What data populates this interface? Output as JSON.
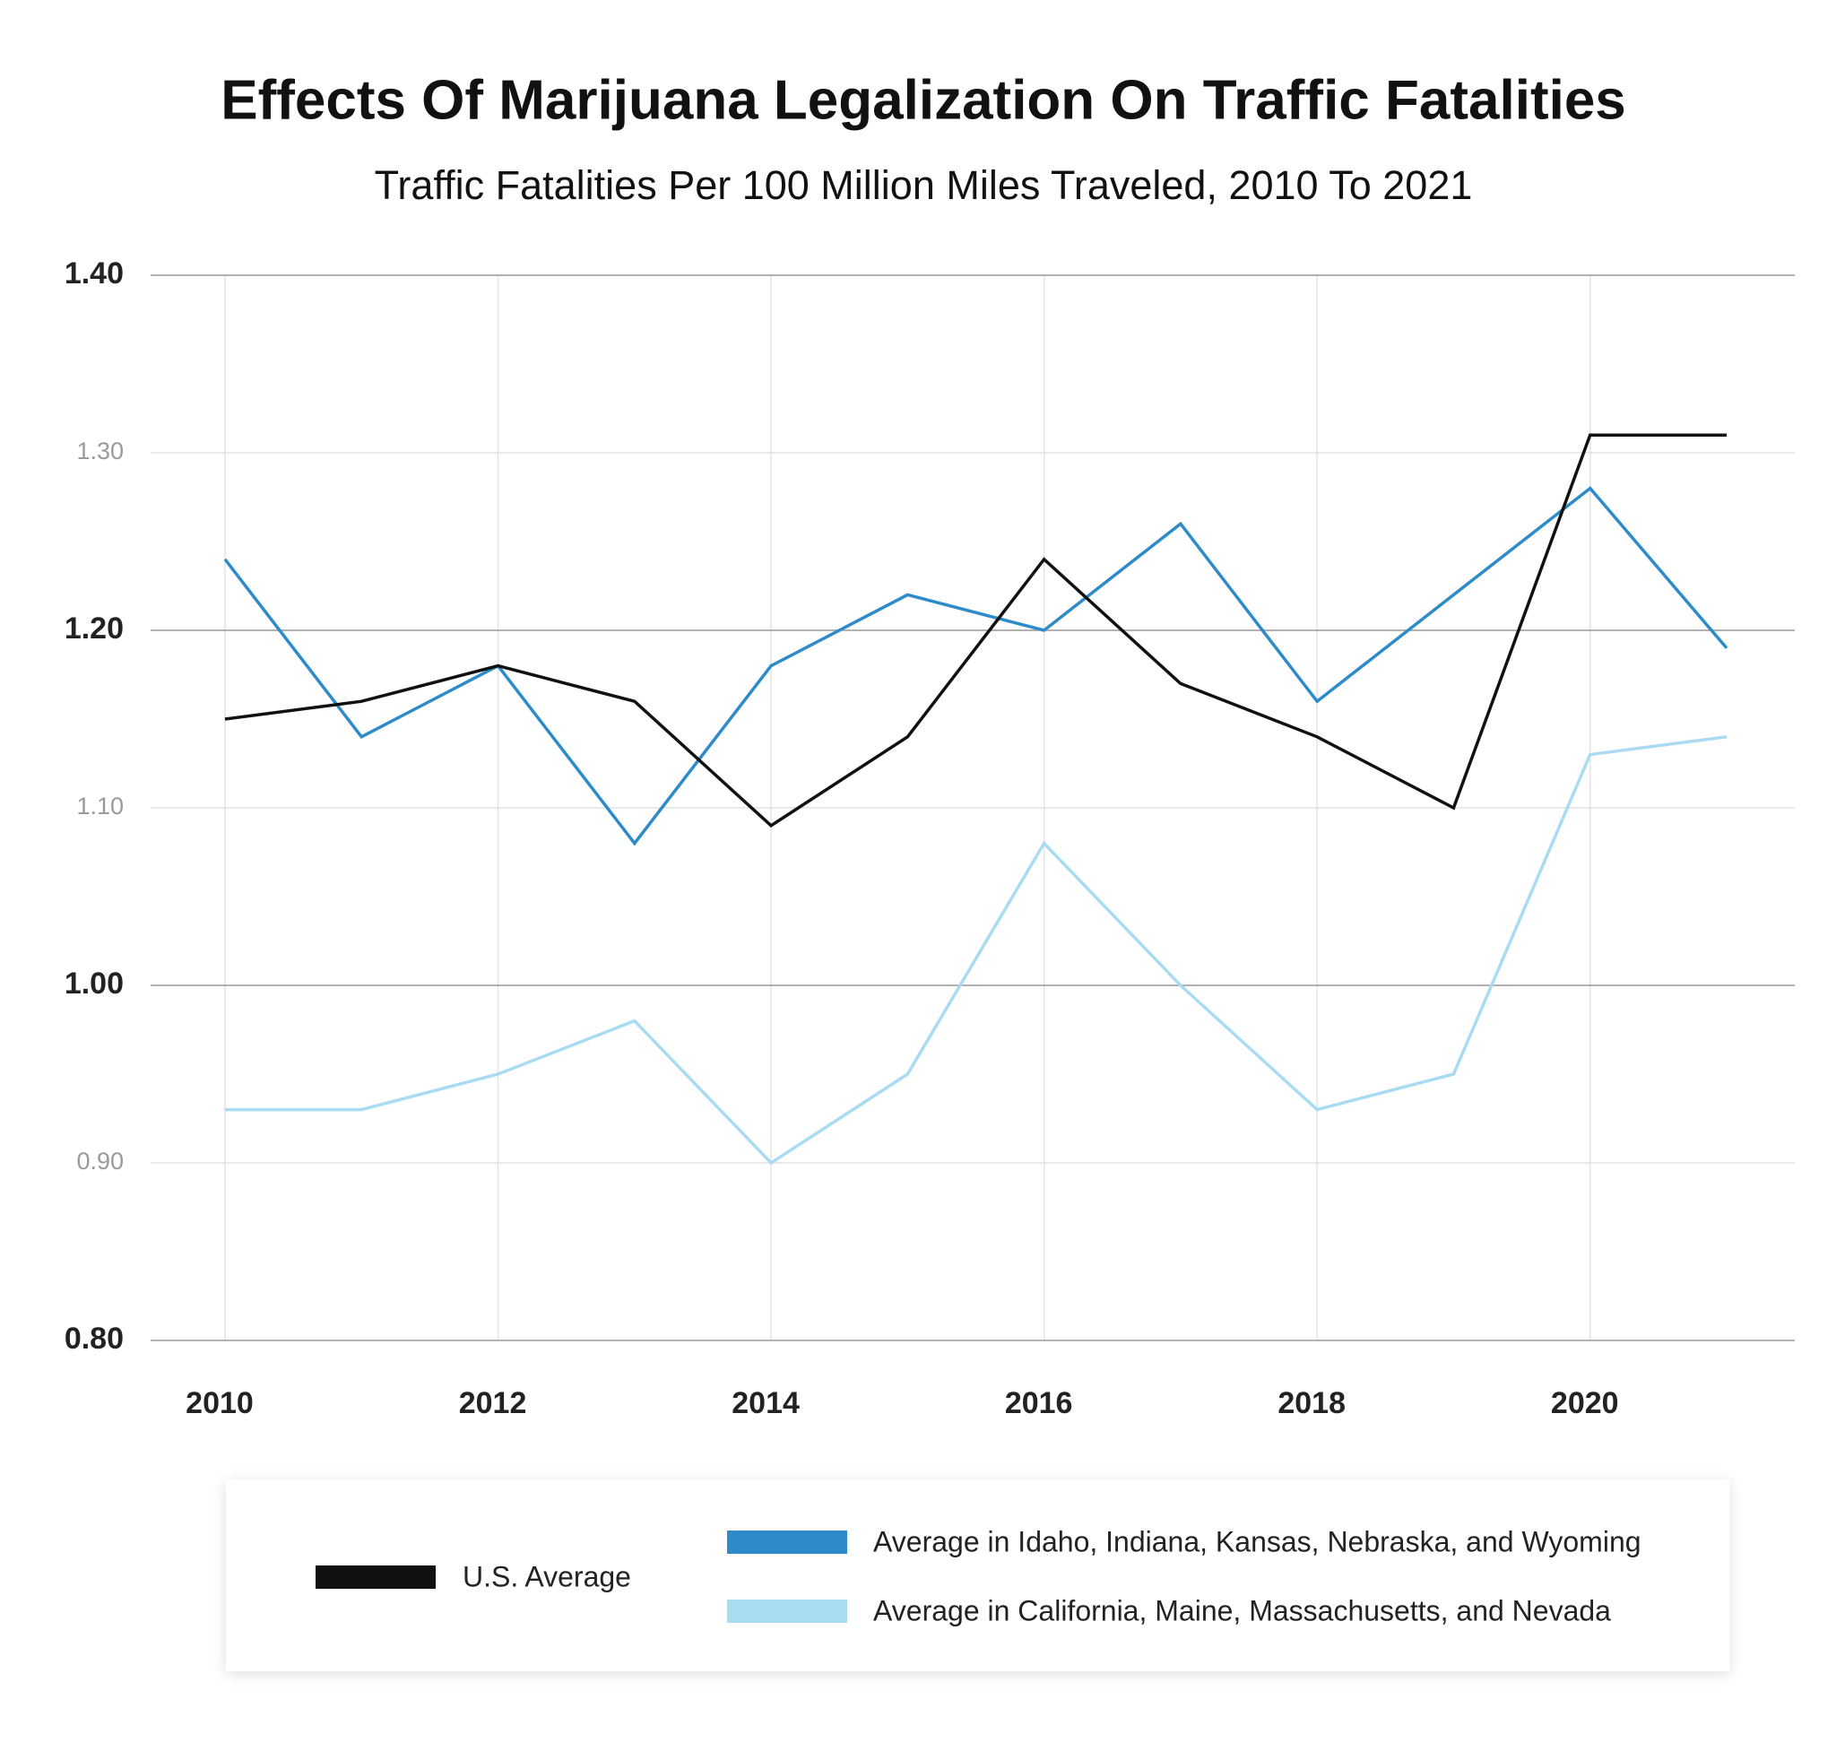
{
  "chart_data": {
    "type": "line",
    "title": "Effects Of Marijuana Legalization On Traffic Fatalities",
    "subtitle": "Traffic Fatalities Per 100 Million Miles Traveled, 2010 To 2021",
    "x": [
      2010,
      2011,
      2012,
      2013,
      2014,
      2015,
      2016,
      2017,
      2018,
      2019,
      2020,
      2021
    ],
    "series": [
      {
        "name": "U.S. Average",
        "color": "#111111",
        "values": [
          1.15,
          1.16,
          1.18,
          1.16,
          1.09,
          1.14,
          1.24,
          1.17,
          1.14,
          1.1,
          1.31,
          1.31
        ]
      },
      {
        "name": "Average in Idaho, Indiana, Kansas, Nebraska, and Wyoming",
        "color": "#2e8bc9",
        "values": [
          1.24,
          1.14,
          1.18,
          1.08,
          1.18,
          1.22,
          1.2,
          1.26,
          1.16,
          1.22,
          1.28,
          1.19
        ]
      },
      {
        "name": "Average in California, Maine, Massachusetts, and Nevada",
        "color": "#a9dbf2",
        "values": [
          0.93,
          0.93,
          0.95,
          0.98,
          0.9,
          0.95,
          1.08,
          1.0,
          0.93,
          0.95,
          1.13,
          1.14
        ]
      }
    ],
    "xlim": [
      2010,
      2021
    ],
    "xticks": [
      2010,
      2012,
      2014,
      2016,
      2018,
      2020
    ],
    "ylim": [
      0.8,
      1.4
    ],
    "yticks": [
      {
        "value": 0.8,
        "label": "0.80"
      },
      {
        "value": 0.9,
        "label": "0.90"
      },
      {
        "value": 1.0,
        "label": "1.00"
      },
      {
        "value": 1.1,
        "label": "1.10"
      },
      {
        "value": 1.2,
        "label": "1.20"
      },
      {
        "value": 1.3,
        "label": "1.30"
      },
      {
        "value": 1.4,
        "label": "1.40"
      }
    ],
    "grid": true
  }
}
